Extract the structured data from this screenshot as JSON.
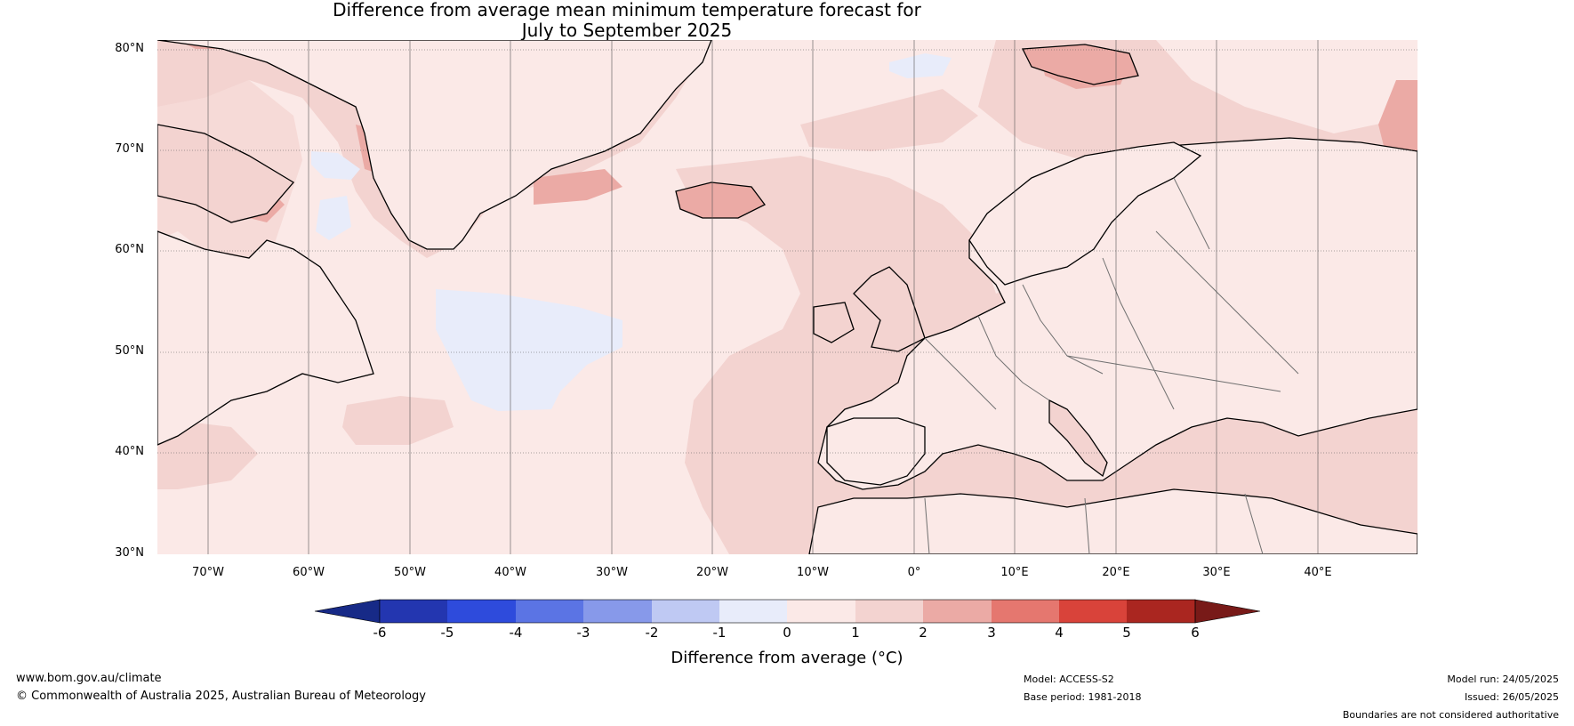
{
  "title": {
    "line1": "Difference from average mean minimum temperature forecast for",
    "line2": "July to September 2025"
  },
  "map": {
    "lat_labels": [
      "80°N",
      "70°N",
      "60°N",
      "50°N",
      "40°N",
      "30°N"
    ],
    "lon_labels": [
      "70°W",
      "60°W",
      "50°W",
      "40°W",
      "30°W",
      "20°W",
      "10°W",
      "0°",
      "10°E",
      "20°E",
      "30°E",
      "40°E"
    ],
    "colors": {
      "ocean_base": "#fbe9e7",
      "anomaly_1_2": "#f3d3d0",
      "anomaly_2_3": "#ebaaa5",
      "anomaly_neg": "#e8ecfa",
      "coastline": "#000000",
      "border": "#707070"
    }
  },
  "colorbar": {
    "ticks": [
      "-6",
      "-5",
      "-4",
      "-3",
      "-2",
      "-1",
      "0",
      "1",
      "2",
      "3",
      "4",
      "5",
      "6"
    ],
    "colors": [
      "#172a87",
      "#2336b0",
      "#2e4bdc",
      "#5b74e4",
      "#8799ea",
      "#bfc9f3",
      "#e8ecfa",
      "#fbe9e7",
      "#f3d3d0",
      "#ebaaa5",
      "#e5776f",
      "#d9433a",
      "#aa2620",
      "#781a18"
    ],
    "label": "Difference from average (°C)"
  },
  "footer": {
    "website": "www.bom.gov.au/climate",
    "copyright": "© Commonwealth of Australia 2025, Australian Bureau of Meteorology",
    "model": "Model: ACCESS-S2",
    "base_period": "Base period: 1981-2018",
    "model_run": "Model run: 24/05/2025",
    "issued": "Issued: 26/05/2025",
    "disclaimer": "Boundaries are not considered authoritative"
  }
}
